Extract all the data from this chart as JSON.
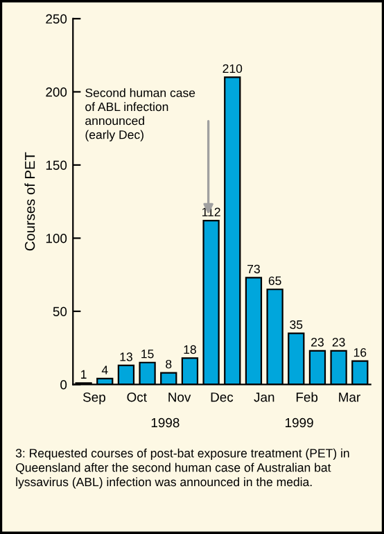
{
  "chart_data": {
    "type": "bar",
    "ylabel": "Courses of PET",
    "categories": [
      "Sep",
      null,
      "Oct",
      null,
      "Nov",
      null,
      "Dec",
      null,
      "Jan",
      null,
      "Feb",
      null,
      "Mar",
      null
    ],
    "values": [
      1,
      4,
      13,
      15,
      8,
      18,
      112,
      210,
      73,
      65,
      35,
      23,
      23,
      16
    ],
    "color": "#00a6dc",
    "data_labels": true,
    "ylim": [
      0,
      250
    ],
    "yticks": [
      0,
      50,
      100,
      150,
      200,
      250
    ],
    "grid": false,
    "legend": false,
    "annotations": [
      "Second human case\nof ABL infection\nannounced\n(early Dec)",
      "1998",
      "1999",
      "3: Requested courses of post-bat exposure treatment (PET) in Queensland after the second human case of Australian bat lyssavirus (ABL) infection was announced in the media."
    ]
  }
}
